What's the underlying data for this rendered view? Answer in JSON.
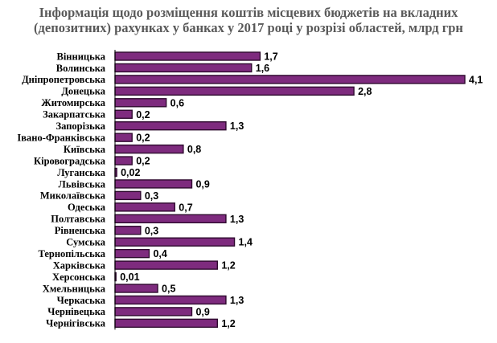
{
  "title_line1": "Інформація щодо розміщення коштів місцевих бюджетів на вкладних",
  "title_line2": "(депозитних) рахунках у банках у 2017 році у розрізі областей, млрд грн",
  "chart_data": {
    "type": "bar",
    "orientation": "horizontal",
    "title": "Інформація щодо розміщення коштів місцевих бюджетів на вкладних (депозитних) рахунках у банках у 2017 році у розрізі областей, млрд грн",
    "categories": [
      "Вінницька",
      "Волинська",
      "Дніпропетровська",
      "Донецька",
      "Житомирська",
      "Закарпатська",
      "Запорізька",
      "Івано-Франківська",
      "Київська",
      "Кіровоградська",
      "Луганська",
      "Львівська",
      "Миколаївська",
      "Одеська",
      "Полтавська",
      "Рівненська",
      "Сумська",
      "Тернопільська",
      "Харківська",
      "Херсонська",
      "Хмельницька",
      "Черкаська",
      "Чернівецька",
      "Чернігівська"
    ],
    "values": [
      1.7,
      1.6,
      4.1,
      2.8,
      0.6,
      0.2,
      1.3,
      0.2,
      0.8,
      0.2,
      0.02,
      0.9,
      0.3,
      0.7,
      1.3,
      0.3,
      1.4,
      0.4,
      1.2,
      0.01,
      0.5,
      1.3,
      0.9,
      1.2
    ],
    "value_labels": [
      "1,7",
      "1,6",
      "4,1",
      "2,8",
      "0,6",
      "0,2",
      "1,3",
      "0,2",
      "0,8",
      "0,2",
      "0,02",
      "0,9",
      "0,3",
      "0,7",
      "1,3",
      "0,3",
      "1,4",
      "0,4",
      "1,2",
      "0,01",
      "0,5",
      "1,3",
      "0,9",
      "1,2"
    ],
    "xlim": [
      0,
      4.1
    ],
    "grid": false,
    "bar_color": "#7e2b7e",
    "bar_border_color": "#2e0a2e"
  }
}
